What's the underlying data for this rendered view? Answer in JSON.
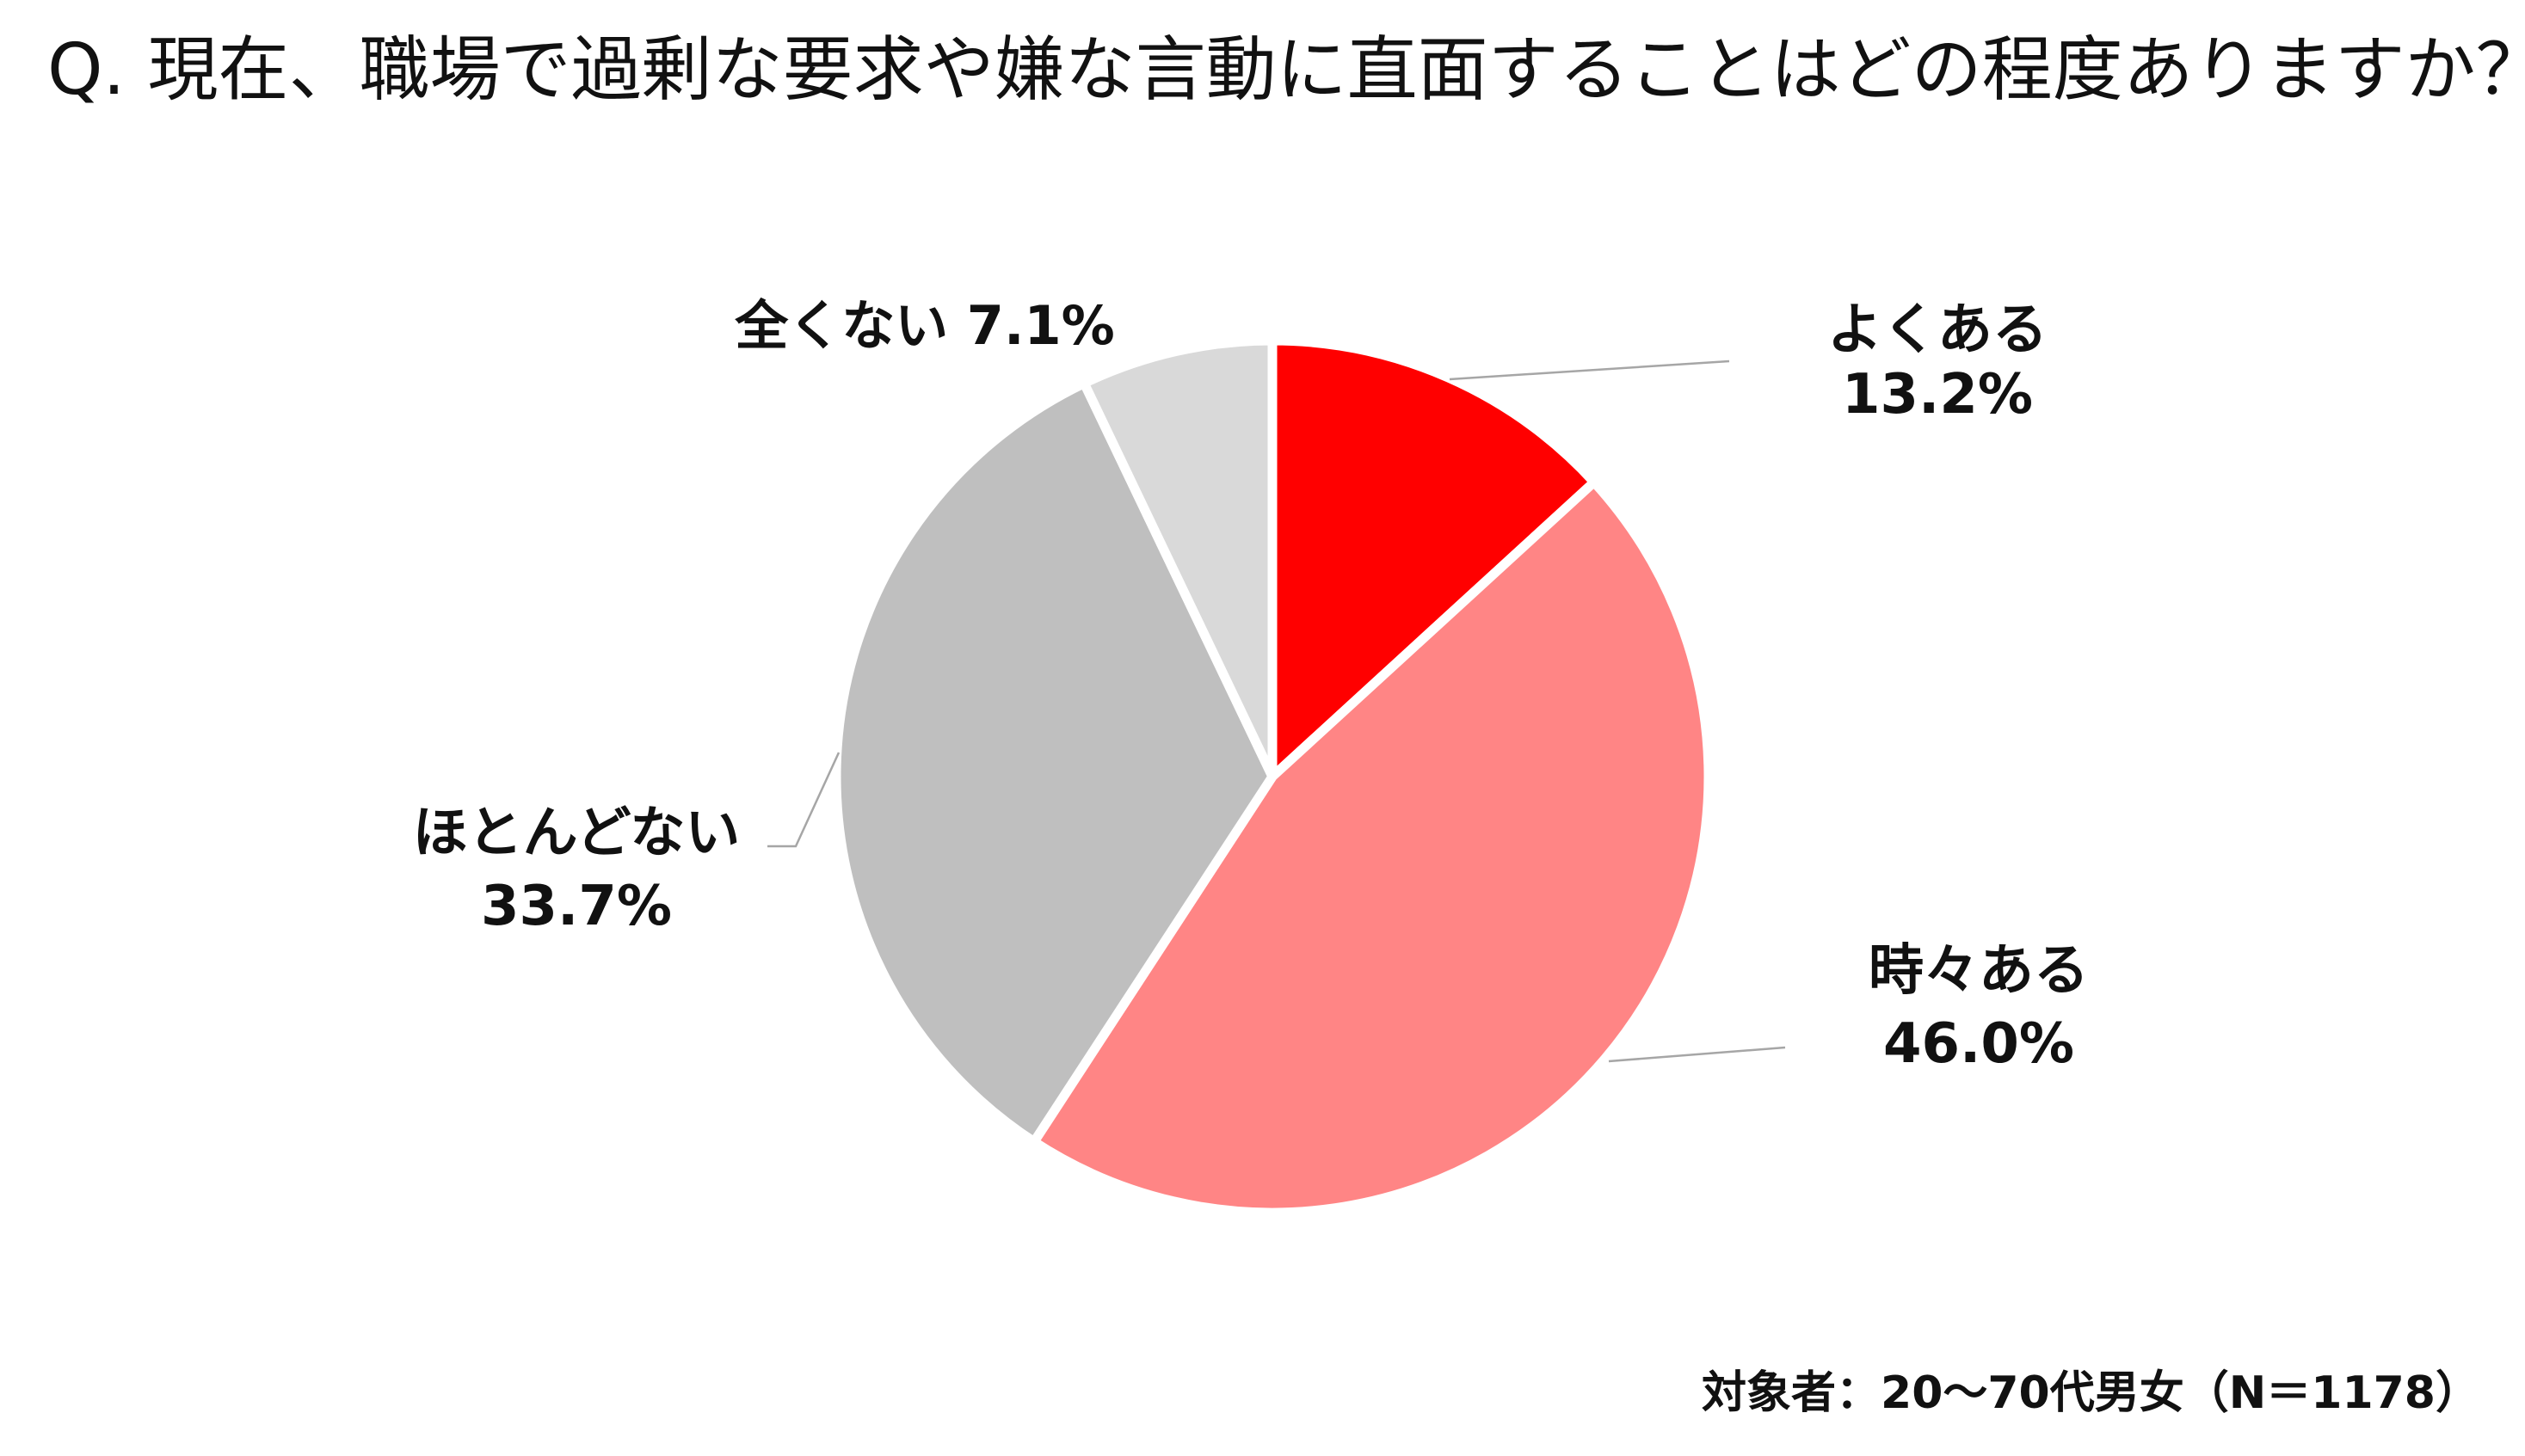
{
  "title": "Q. 現在、職場で過剰な要求や嫌な言動に直面することはどの程度ありますか？",
  "footnote": "対象者：20～70代男女（N＝1178）",
  "chart_data": {
    "type": "pie",
    "start": "12 o'clock",
    "direction": "clockwise",
    "slices": [
      {
        "label": "よくある",
        "value": 13.2,
        "value_label": "13.2%",
        "color": "#ff0000",
        "label_position": "top-right"
      },
      {
        "label": "時々ある",
        "value": 46.0,
        "value_label": "46.0%",
        "color": "#ff8585",
        "label_position": "bottom-right"
      },
      {
        "label": "ほとんどない",
        "value": 33.7,
        "value_label": "33.7%",
        "color": "#bfbfbf",
        "label_position": "left"
      },
      {
        "label": "全くない",
        "value": 7.1,
        "value_label": "7.1%",
        "color": "#d9d9d9",
        "label_position": "top-left"
      }
    ]
  }
}
